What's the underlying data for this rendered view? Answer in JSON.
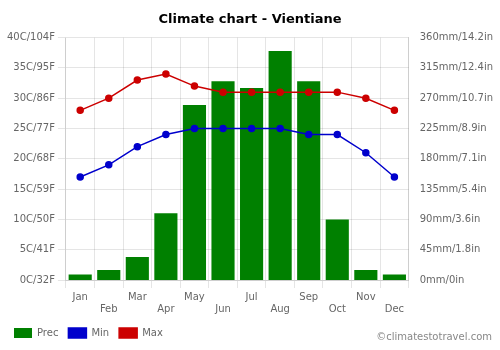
{
  "chart_data": {
    "type": "bar",
    "title": "Climate chart - Vientiane",
    "categories": [
      "Jan",
      "Feb",
      "Mar",
      "Apr",
      "May",
      "Jun",
      "Jul",
      "Aug",
      "Sep",
      "Oct",
      "Nov",
      "Dec"
    ],
    "series": [
      {
        "name": "Prec",
        "type": "bar",
        "axis": "y2",
        "color": "#008000",
        "values": [
          8,
          15,
          34,
          99,
          260,
          295,
          285,
          340,
          295,
          90,
          15,
          8
        ]
      },
      {
        "name": "Min",
        "type": "line",
        "marker": "circle",
        "color": "#0000cc",
        "values": [
          17,
          19,
          22,
          24,
          25,
          25,
          25,
          25,
          24,
          24,
          21,
          17
        ]
      },
      {
        "name": "Max",
        "type": "line",
        "marker": "circle",
        "color": "#cc0000",
        "values": [
          28,
          30,
          33,
          34,
          32,
          31,
          31,
          31,
          31,
          31,
          30,
          28
        ]
      }
    ],
    "ylim": [
      0,
      40
    ],
    "yticks": [
      {
        "value": 0,
        "label": "0C/32F"
      },
      {
        "value": 5,
        "label": "5C/41F"
      },
      {
        "value": 10,
        "label": "10C/50F"
      },
      {
        "value": 15,
        "label": "15C/59F"
      },
      {
        "value": 20,
        "label": "20C/68F"
      },
      {
        "value": 25,
        "label": "25C/77F"
      },
      {
        "value": 30,
        "label": "30C/86F"
      },
      {
        "value": 35,
        "label": "35C/95F"
      },
      {
        "value": 40,
        "label": "40C/104F"
      }
    ],
    "y2lim": [
      0,
      360
    ],
    "y2ticks": [
      {
        "value": 0,
        "label": "0mm/0in"
      },
      {
        "value": 45,
        "label": "45mm/1.8in"
      },
      {
        "value": 90,
        "label": "90mm/3.6in"
      },
      {
        "value": 135,
        "label": "135mm/5.4in"
      },
      {
        "value": 180,
        "label": "180mm/7.1in"
      },
      {
        "value": 225,
        "label": "225mm/8.9in"
      },
      {
        "value": 270,
        "label": "270mm/10.7in"
      },
      {
        "value": 315,
        "label": "315mm/12.4in"
      },
      {
        "value": 360,
        "label": "360mm/14.2in"
      }
    ],
    "grid": true,
    "legend": "bottom-left",
    "annotations": [
      "©climatestotravel.com"
    ]
  }
}
